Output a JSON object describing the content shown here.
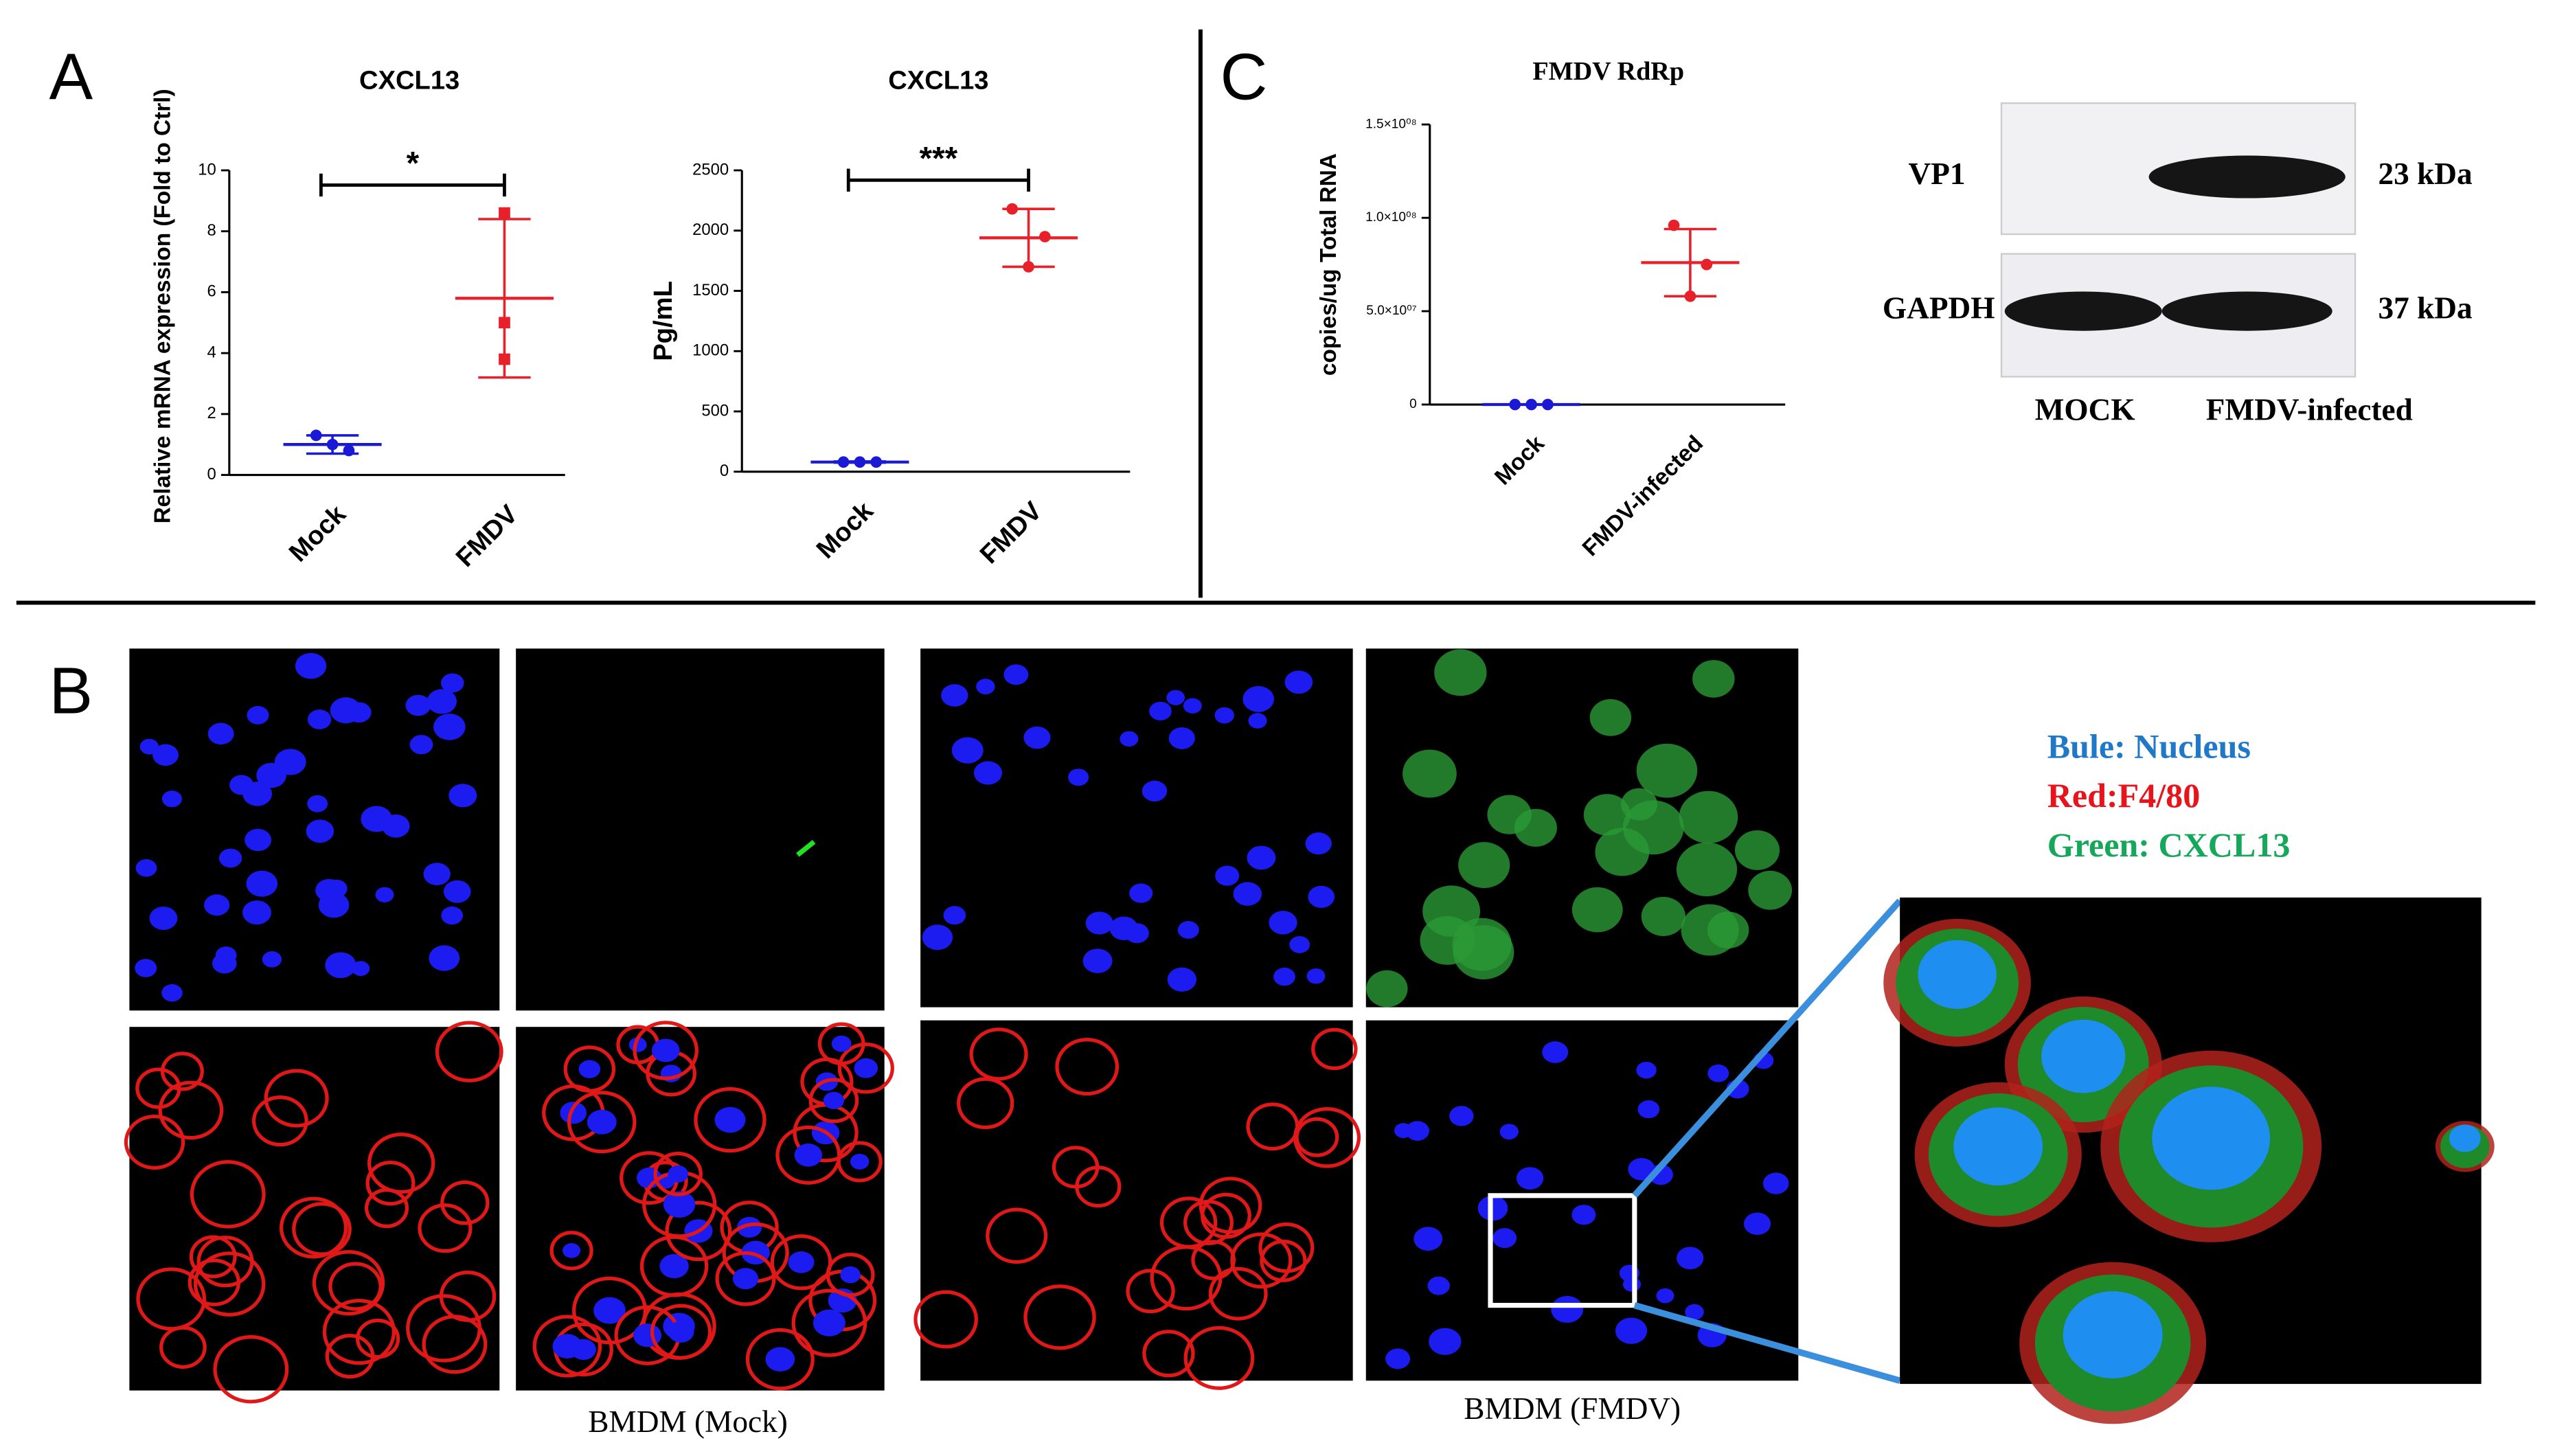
{
  "chart_data": [
    {
      "type": "dot",
      "title": "CXCL13",
      "ylabel": "Relative mRNA expression (Fold to Ctrl)",
      "ylim": [
        0,
        10
      ],
      "yticks": [
        0,
        2,
        4,
        6,
        8,
        10
      ],
      "significance": "*",
      "groups": [
        {
          "name": "Mock",
          "color": "#1a1ad6",
          "values": [
            1.3,
            0.8,
            1.0
          ],
          "mean": 1.0,
          "sd": 0.3
        },
        {
          "name": "FMDV",
          "color": "#e8202a",
          "values": [
            8.6,
            5.0,
            3.8
          ],
          "mean": 5.8,
          "sd": 2.6
        }
      ]
    },
    {
      "type": "dot",
      "title": "CXCL13",
      "ylabel": "Pg/mL",
      "ylim": [
        0,
        2500
      ],
      "yticks": [
        0,
        500,
        1000,
        1500,
        2000,
        2500
      ],
      "significance": "***",
      "groups": [
        {
          "name": "Mock",
          "color": "#1a1ad6",
          "values": [
            80,
            80,
            80
          ],
          "mean": 80,
          "sd": 5
        },
        {
          "name": "FMDV",
          "color": "#e8202a",
          "values": [
            2180,
            1950,
            1700
          ],
          "mean": 1940,
          "sd": 240
        }
      ]
    },
    {
      "type": "dot",
      "title": "FMDV RdRp",
      "ylabel": "copies/ug Total RNA",
      "ylim": [
        0,
        150000000
      ],
      "yticks": [
        0,
        {
          "value": 50000000,
          "label": "5.0×10⁰⁷"
        },
        {
          "value": 100000000,
          "label": "1.0×10⁰⁸"
        },
        {
          "value": 150000000,
          "label": "1.5×10⁰⁸"
        }
      ],
      "groups": [
        {
          "name": "Mock",
          "color": "#1a1ad6",
          "values": [
            0,
            0,
            0
          ],
          "mean": 0,
          "sd": 0
        },
        {
          "name": "FMDV-infected",
          "color": "#e8202a",
          "values": [
            96000000,
            75000000,
            58000000
          ],
          "mean": 76000000,
          "sd": 18000000
        }
      ]
    }
  ],
  "panels": {
    "a": "A",
    "b": "B",
    "c": "C"
  },
  "blot": {
    "rows": [
      {
        "name": "VP1",
        "size": "23 kDa"
      },
      {
        "name": "GAPDH",
        "size": "37 kDa"
      }
    ],
    "lanes": [
      "MOCK",
      "FMDV-infected"
    ]
  },
  "microscopy": {
    "mock_caption": "BMDM (Mock)",
    "fmdv_caption": "BMDM (FMDV)",
    "legend": [
      {
        "text": "Bule: Nucleus",
        "color": "#1f78c8"
      },
      {
        "text": "Red:F4/80",
        "color": "#e8141c"
      },
      {
        "text": "Green: CXCL13",
        "color": "#16a85a"
      }
    ]
  }
}
